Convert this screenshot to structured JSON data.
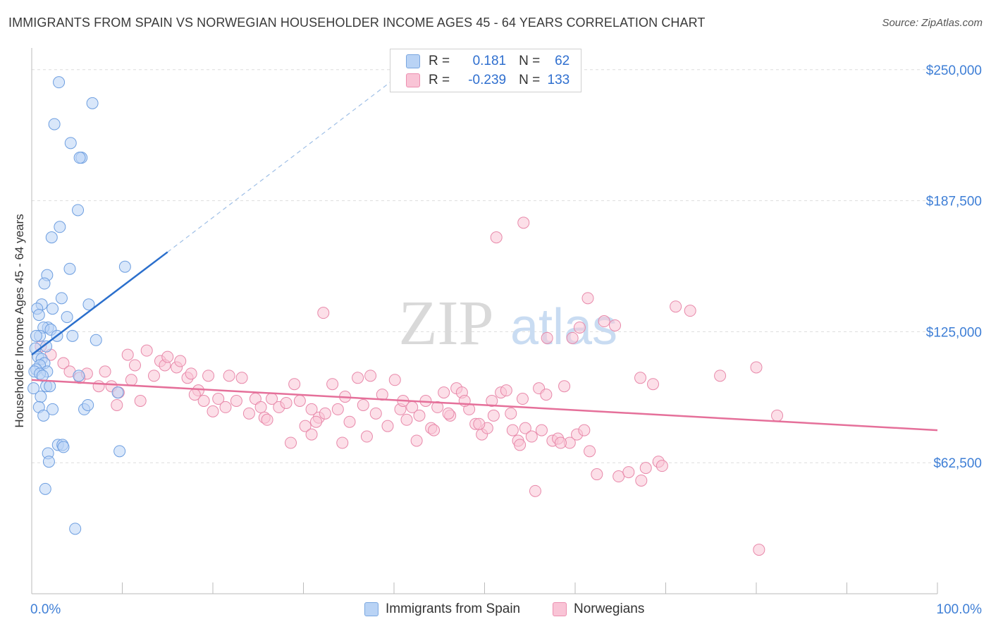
{
  "title": "IMMIGRANTS FROM SPAIN VS NORWEGIAN HOUSEHOLDER INCOME AGES 45 - 64 YEARS CORRELATION CHART",
  "source": "Source: ZipAtlas.com",
  "watermark": {
    "zip": "ZIP",
    "atlas": "atlas"
  },
  "legend": {
    "r_label": "R =",
    "n_label": "N =",
    "rows": [
      {
        "name": "Immigrants from Spain",
        "r": "0.181",
        "n": "62"
      },
      {
        "name": "Norwegians",
        "r": "-0.239",
        "n": "133"
      }
    ]
  },
  "colors": {
    "blue_fill": "#b9d3f5",
    "blue_stroke": "#6d9ee0",
    "blue_line": "#2b6fcc",
    "pink_fill": "#f9c4d6",
    "pink_stroke": "#e889aa",
    "pink_line": "#e5709a",
    "tick_label": "#3f7fd6",
    "grid": "#dddddd"
  },
  "chart_data": {
    "type": "scatter",
    "title": "IMMIGRANTS FROM SPAIN VS NORWEGIAN HOUSEHOLDER INCOME AGES 45 - 64 YEARS CORRELATION CHART",
    "xlabel": "",
    "ylabel": "Householder Income Ages 45 - 64 years",
    "x_tick_labels": [
      "0.0%",
      "100.0%"
    ],
    "y_tick_labels": [
      "$62,500",
      "$125,000",
      "$187,500",
      "$250,000"
    ],
    "y_ticks": [
      62500,
      125000,
      187500,
      250000
    ],
    "xlim": [
      0,
      100
    ],
    "ylim": [
      0,
      257000
    ],
    "series": [
      {
        "name": "Immigrants from Spain",
        "color": "blue",
        "trend": {
          "x0": 0,
          "y0": 114000,
          "x1": 15,
          "y1": 163000,
          "dash_to_x": 42,
          "dash_to_y": 252000
        },
        "points": [
          [
            3.0,
            244000
          ],
          [
            6.7,
            234000
          ],
          [
            2.5,
            224000
          ],
          [
            4.3,
            215000
          ],
          [
            5.5,
            208000
          ],
          [
            5.3,
            208000
          ],
          [
            5.1,
            183000
          ],
          [
            3.1,
            175000
          ],
          [
            2.2,
            170000
          ],
          [
            4.2,
            155000
          ],
          [
            10.3,
            156000
          ],
          [
            1.7,
            152000
          ],
          [
            1.4,
            148000
          ],
          [
            3.3,
            141000
          ],
          [
            1.1,
            138000
          ],
          [
            0.6,
            136000
          ],
          [
            2.3,
            136000
          ],
          [
            6.3,
            138000
          ],
          [
            0.8,
            133000
          ],
          [
            3.9,
            132000
          ],
          [
            1.8,
            127000
          ],
          [
            1.3,
            127000
          ],
          [
            2.1,
            126000
          ],
          [
            0.9,
            123000
          ],
          [
            0.5,
            123000
          ],
          [
            2.8,
            123000
          ],
          [
            4.5,
            123000
          ],
          [
            7.1,
            121000
          ],
          [
            1.6,
            118000
          ],
          [
            0.4,
            117000
          ],
          [
            0.7,
            113000
          ],
          [
            1.1,
            112000
          ],
          [
            1.4,
            110000
          ],
          [
            0.9,
            109000
          ],
          [
            0.5,
            107000
          ],
          [
            1.7,
            106000
          ],
          [
            0.3,
            106000
          ],
          [
            0.9,
            105000
          ],
          [
            1.2,
            104000
          ],
          [
            5.2,
            104000
          ],
          [
            1.6,
            99000
          ],
          [
            2.0,
            99000
          ],
          [
            0.2,
            98000
          ],
          [
            9.5,
            96000
          ],
          [
            1.0,
            94000
          ],
          [
            0.8,
            89000
          ],
          [
            2.3,
            88000
          ],
          [
            5.8,
            88000
          ],
          [
            6.2,
            90000
          ],
          [
            1.3,
            85000
          ],
          [
            2.9,
            71000
          ],
          [
            3.4,
            71000
          ],
          [
            3.5,
            70000
          ],
          [
            1.8,
            67000
          ],
          [
            9.7,
            68000
          ],
          [
            1.9,
            63000
          ],
          [
            1.5,
            50000
          ],
          [
            4.8,
            31000
          ]
        ]
      },
      {
        "name": "Norwegians",
        "color": "pink",
        "trend": {
          "x0": 0,
          "y0": 102000,
          "x1": 100,
          "y1": 78000
        },
        "points": [
          [
            51.3,
            170000
          ],
          [
            54.3,
            177000
          ],
          [
            61.4,
            141000
          ],
          [
            71.1,
            137000
          ],
          [
            72.7,
            135000
          ],
          [
            63.2,
            130000
          ],
          [
            64.4,
            128000
          ],
          [
            32.2,
            134000
          ],
          [
            56.9,
            122000
          ],
          [
            59.7,
            122000
          ],
          [
            60.5,
            127000
          ],
          [
            1.0,
            118000
          ],
          [
            2.1,
            114000
          ],
          [
            3.5,
            110000
          ],
          [
            4.2,
            106000
          ],
          [
            5.3,
            103000
          ],
          [
            6.1,
            105000
          ],
          [
            7.4,
            99000
          ],
          [
            8.1,
            106000
          ],
          [
            8.8,
            99000
          ],
          [
            9.6,
            96000
          ],
          [
            11.0,
            102000
          ],
          [
            10.6,
            114000
          ],
          [
            11.4,
            109000
          ],
          [
            12.7,
            116000
          ],
          [
            13.5,
            104000
          ],
          [
            14.2,
            111000
          ],
          [
            14.7,
            109000
          ],
          [
            15.0,
            113000
          ],
          [
            16.0,
            108000
          ],
          [
            16.4,
            111000
          ],
          [
            17.2,
            103000
          ],
          [
            17.6,
            105000
          ],
          [
            18.4,
            97000
          ],
          [
            19.5,
            104000
          ],
          [
            19.0,
            92000
          ],
          [
            20.0,
            87000
          ],
          [
            20.6,
            93000
          ],
          [
            21.4,
            89000
          ],
          [
            21.8,
            104000
          ],
          [
            22.6,
            92000
          ],
          [
            23.2,
            103000
          ],
          [
            24.0,
            86000
          ],
          [
            24.7,
            93000
          ],
          [
            25.3,
            89000
          ],
          [
            25.7,
            84000
          ],
          [
            26.5,
            93000
          ],
          [
            27.3,
            89000
          ],
          [
            28.1,
            91000
          ],
          [
            29.0,
            100000
          ],
          [
            29.6,
            92000
          ],
          [
            30.2,
            80000
          ],
          [
            30.9,
            88000
          ],
          [
            31.7,
            84000
          ],
          [
            32.4,
            86000
          ],
          [
            33.2,
            100000
          ],
          [
            33.8,
            88000
          ],
          [
            34.6,
            94000
          ],
          [
            35.1,
            82000
          ],
          [
            36.0,
            103000
          ],
          [
            36.6,
            90000
          ],
          [
            37.4,
            104000
          ],
          [
            38.0,
            86000
          ],
          [
            38.7,
            95000
          ],
          [
            39.3,
            80000
          ],
          [
            40.1,
            102000
          ],
          [
            40.7,
            88000
          ],
          [
            41.4,
            83000
          ],
          [
            42.0,
            89000
          ],
          [
            42.8,
            85000
          ],
          [
            43.5,
            92000
          ],
          [
            44.1,
            79000
          ],
          [
            44.8,
            89000
          ],
          [
            45.5,
            96000
          ],
          [
            46.2,
            85000
          ],
          [
            46.9,
            98000
          ],
          [
            47.5,
            96000
          ],
          [
            48.3,
            88000
          ],
          [
            49.0,
            81000
          ],
          [
            49.7,
            76000
          ],
          [
            50.3,
            79000
          ],
          [
            51.0,
            85000
          ],
          [
            51.8,
            96000
          ],
          [
            52.4,
            97000
          ],
          [
            53.1,
            78000
          ],
          [
            53.7,
            73000
          ],
          [
            54.5,
            79000
          ],
          [
            55.2,
            75000
          ],
          [
            56.0,
            98000
          ],
          [
            56.8,
            95000
          ],
          [
            57.5,
            73000
          ],
          [
            58.1,
            74000
          ],
          [
            58.8,
            99000
          ],
          [
            59.4,
            72000
          ],
          [
            60.2,
            76000
          ],
          [
            61.0,
            78000
          ],
          [
            61.6,
            68000
          ],
          [
            62.4,
            57000
          ],
          [
            64.8,
            56000
          ],
          [
            65.9,
            58000
          ],
          [
            67.3,
            54000
          ],
          [
            67.8,
            60000
          ],
          [
            69.2,
            63000
          ],
          [
            69.6,
            61000
          ],
          [
            68.6,
            100000
          ],
          [
            67.2,
            103000
          ],
          [
            76.0,
            104000
          ],
          [
            80.0,
            108000
          ],
          [
            80.3,
            21000
          ],
          [
            82.3,
            85000
          ],
          [
            55.6,
            49000
          ],
          [
            53.9,
            71000
          ],
          [
            56.3,
            78000
          ],
          [
            58.4,
            72000
          ],
          [
            28.6,
            72000
          ],
          [
            30.9,
            76000
          ],
          [
            31.4,
            82000
          ],
          [
            34.3,
            72000
          ],
          [
            37.0,
            75000
          ],
          [
            41.0,
            92000
          ],
          [
            42.5,
            73000
          ],
          [
            44.4,
            78000
          ],
          [
            46.0,
            86000
          ],
          [
            47.8,
            92000
          ],
          [
            49.4,
            81000
          ],
          [
            50.8,
            92000
          ],
          [
            52.9,
            86000
          ],
          [
            54.2,
            93000
          ],
          [
            26.0,
            83000
          ],
          [
            18.0,
            95000
          ],
          [
            12.0,
            92000
          ],
          [
            9.4,
            90000
          ]
        ]
      }
    ]
  }
}
